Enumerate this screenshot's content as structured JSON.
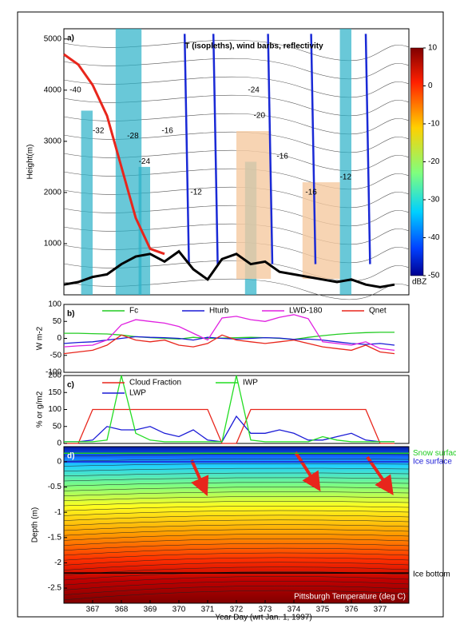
{
  "chart_data": [
    {
      "type": "contour",
      "panel": "a)",
      "title": "T (isopleths), wind barbs, reflectivity",
      "ylabel": "Height(m)",
      "xlim": [
        366,
        378
      ],
      "ylim": [
        0,
        5200
      ],
      "yticks": [
        1000,
        2000,
        3000,
        4000,
        5000
      ],
      "x": [
        366,
        366.5,
        367,
        367.5,
        368,
        368.5,
        369,
        369.5,
        370,
        370.5,
        371,
        371.5,
        372,
        372.5,
        373,
        373.5,
        374,
        374.5,
        375,
        375.5,
        376,
        376.5,
        377,
        377.5
      ],
      "series": [
        {
          "color": "#e8261c",
          "values": [
            4700,
            4500,
            4100,
            3500,
            2500,
            1500,
            900,
            800,
            null,
            null,
            null,
            null,
            null,
            null,
            null,
            null,
            null,
            null,
            null,
            null,
            null,
            null,
            null,
            null
          ]
        },
        {
          "color": "#000000",
          "values": [
            200,
            250,
            350,
            400,
            600,
            750,
            800,
            650,
            850,
            500,
            300,
            700,
            800,
            600,
            650,
            450,
            400,
            350,
            300,
            250,
            300,
            200,
            150,
            200
          ]
        }
      ],
      "contour_labels": [
        {
          "x": 366.4,
          "y": 4000,
          "label": "-40"
        },
        {
          "x": 367.2,
          "y": 3200,
          "label": "-32"
        },
        {
          "x": 368.4,
          "y": 3100,
          "label": "-28"
        },
        {
          "x": 368.8,
          "y": 2600,
          "label": "-24"
        },
        {
          "x": 369.6,
          "y": 3200,
          "label": "-16"
        },
        {
          "x": 370.6,
          "y": 2000,
          "label": "-12"
        },
        {
          "x": 372.6,
          "y": 4000,
          "label": "-24"
        },
        {
          "x": 372.8,
          "y": 3500,
          "label": "-20"
        },
        {
          "x": 373.6,
          "y": 2700,
          "label": "-16"
        },
        {
          "x": 374.6,
          "y": 2000,
          "label": "-16"
        },
        {
          "x": 375.8,
          "y": 2300,
          "label": "-12"
        }
      ],
      "colorbar": {
        "lim": [
          -50,
          10
        ],
        "ticks": [
          10,
          0,
          -10,
          -20,
          -30,
          -40,
          -50
        ],
        "label": "dBZ"
      }
    },
    {
      "type": "line",
      "panel": "b)",
      "ylabel": "W m-2",
      "xlim": [
        366,
        378
      ],
      "ylim": [
        -100,
        100
      ],
      "yticks": [
        -100,
        -50,
        0,
        50,
        100
      ],
      "x": [
        366,
        366.5,
        367,
        367.5,
        368,
        368.5,
        369,
        369.5,
        370,
        370.5,
        371,
        371.5,
        372,
        372.5,
        373,
        373.5,
        374,
        374.5,
        375,
        375.5,
        376,
        376.5,
        377,
        377.5
      ],
      "series": [
        {
          "name": "Fc",
          "color": "#22cc22",
          "values": [
            15,
            15,
            14,
            13,
            10,
            5,
            2,
            0,
            -2,
            3,
            0,
            1,
            2,
            3,
            2,
            0,
            -3,
            3,
            8,
            12,
            15,
            17,
            18,
            18
          ]
        },
        {
          "name": "Hturb",
          "color": "#1a1ad6",
          "values": [
            -15,
            -12,
            -10,
            -5,
            0,
            5,
            3,
            2,
            0,
            -5,
            3,
            0,
            -2,
            0,
            2,
            1,
            -3,
            -2,
            -5,
            -10,
            -15,
            -18,
            -15,
            -20
          ]
        },
        {
          "name": "LWD-180",
          "color": "#e020e0",
          "values": [
            -25,
            -22,
            -20,
            -5,
            40,
            55,
            50,
            45,
            35,
            15,
            -5,
            60,
            65,
            55,
            50,
            62,
            70,
            58,
            -10,
            -15,
            -20,
            -10,
            -30,
            -35
          ]
        },
        {
          "name": "Qnet",
          "color": "#e8261c",
          "values": [
            -45,
            -40,
            -35,
            -20,
            10,
            -5,
            -10,
            -5,
            -20,
            -25,
            -15,
            10,
            -5,
            -10,
            -15,
            -10,
            -5,
            -15,
            -25,
            -30,
            -35,
            -20,
            -40,
            -45
          ]
        }
      ]
    },
    {
      "type": "line",
      "panel": "c)",
      "ylabel": "% or g/m2",
      "xlim": [
        366,
        378
      ],
      "ylim": [
        0,
        200
      ],
      "yticks": [
        0,
        50,
        100,
        150,
        200
      ],
      "x": [
        366,
        366.5,
        367,
        367.5,
        368,
        368.5,
        369,
        369.5,
        370,
        370.5,
        371,
        371.5,
        372,
        372.5,
        373,
        373.5,
        374,
        374.5,
        375,
        375.5,
        376,
        376.5,
        377,
        377.5
      ],
      "series": [
        {
          "name": "Cloud Fraction",
          "color": "#e8261c",
          "values": [
            0,
            0,
            100,
            100,
            100,
            100,
            100,
            100,
            100,
            100,
            100,
            0,
            0,
            100,
            100,
            100,
            100,
            100,
            100,
            100,
            100,
            100,
            0,
            0
          ]
        },
        {
          "name": "LWP",
          "color": "#1a1ad6",
          "values": [
            5,
            5,
            10,
            50,
            40,
            40,
            50,
            30,
            20,
            40,
            10,
            5,
            80,
            30,
            30,
            40,
            30,
            10,
            10,
            20,
            30,
            10,
            5,
            5
          ]
        },
        {
          "name": "IWP",
          "color": "#22dd22",
          "values": [
            5,
            5,
            5,
            10,
            200,
            30,
            10,
            5,
            5,
            5,
            5,
            5,
            200,
            10,
            5,
            5,
            5,
            5,
            20,
            10,
            5,
            5,
            5,
            5
          ]
        }
      ]
    },
    {
      "type": "heatmap",
      "panel": "d)",
      "xlabel": "Year Day (wrt Jan. 1, 1997)",
      "ylabel": "Depth (m)",
      "note": "Pittsburgh Temperature (deg C)",
      "xlim": [
        366,
        378
      ],
      "xticks": [
        367,
        368,
        369,
        370,
        371,
        372,
        373,
        374,
        375,
        376,
        377
      ],
      "ylim": [
        -2.8,
        0.3
      ],
      "yticks": [
        0,
        -0.5,
        -1,
        -1.5,
        -2,
        -2.5
      ],
      "levels": [
        {
          "name": "Snow surface",
          "color": "#22cc22",
          "depth": 0.17
        },
        {
          "name": "Ice surface",
          "color": "#1a1ad6",
          "depth": 0
        },
        {
          "name": "Ice bottom",
          "color": "#000000",
          "depth": -2.2
        }
      ]
    }
  ]
}
